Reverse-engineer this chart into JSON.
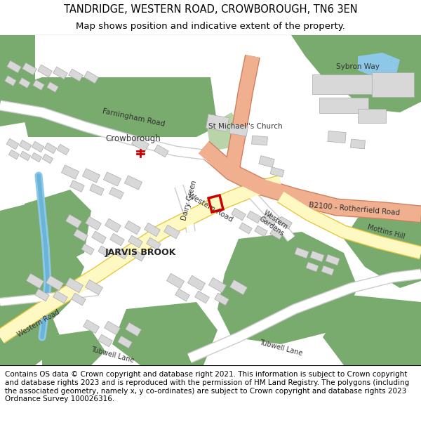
{
  "title_line1": "TANDRIDGE, WESTERN ROAD, CROWBOROUGH, TN6 3EN",
  "title_line2": "Map shows position and indicative extent of the property.",
  "footer": "Contains OS data © Crown copyright and database right 2021. This information is subject to Crown copyright and database rights 2023 and is reproduced with the permission of HM Land Registry. The polygons (including the associated geometry, namely x, y co-ordinates) are subject to Crown copyright and database rights 2023 Ordnance Survey 100026316.",
  "title_fontsize": 10.5,
  "subtitle_fontsize": 9.5,
  "footer_fontsize": 7.5,
  "fig_width": 6.0,
  "fig_height": 6.25,
  "map_bg": "#f2efe9",
  "green": "#7aab6e",
  "green_light": "#b8d4a8",
  "road_yellow_fill": "#fef9c3",
  "road_yellow_edge": "#e8c840",
  "road_orange_fill": "#f0b090",
  "road_orange_edge": "#d08060",
  "road_white_fill": "#ffffff",
  "road_white_edge": "#cccccc",
  "building_fill": "#d8d8d8",
  "building_edge": "#aaaaaa",
  "water_blue": "#8ec8e8",
  "plot_red": "#cc0000",
  "white": "#ffffff",
  "black": "#000000",
  "text_dark": "#333333"
}
